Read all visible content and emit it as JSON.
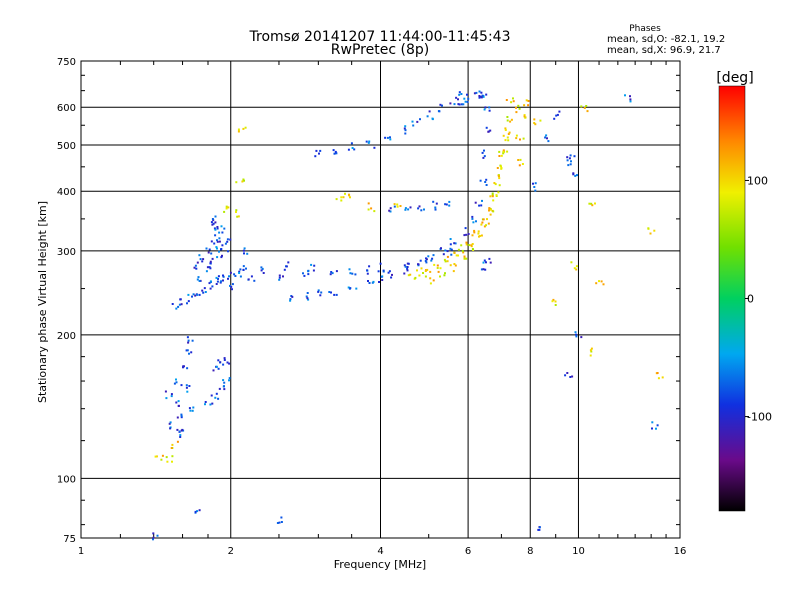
{
  "chart_data": {
    "type": "scatter",
    "title": "Tromsø 20141207 11:44:00-11:45:43",
    "subtitle": "RwPretec (8p)",
    "xlabel": "Frequency [MHz]",
    "ylabel": "Stationary phase Virtual Height [km]",
    "x_scale": "log",
    "y_scale": "log",
    "xlim": [
      1,
      16
    ],
    "ylim": [
      75,
      750
    ],
    "xticks": [
      1,
      2,
      4,
      6,
      8,
      10,
      16
    ],
    "yticks": [
      75,
      100,
      200,
      300,
      400,
      500,
      600,
      750
    ],
    "grid": true,
    "stats": {
      "title": "Phases",
      "line_o": "mean, sd,O:  -82.1, 19.2",
      "line_x": "mean, sd,X:  96.9, 21.7"
    },
    "colorbar": {
      "label": "[deg]",
      "range": [
        -180,
        180
      ],
      "ticks": [
        100,
        0,
        -100
      ],
      "colormap": "rainbow: black-purple-blue-cyan-green-yellow-red"
    },
    "series": [
      {
        "mode": "O",
        "mean_phase": -82.1,
        "points": [
          [
            1.5,
            150
          ],
          [
            1.52,
            130
          ],
          [
            1.54,
            145
          ],
          [
            1.56,
            160
          ],
          [
            1.58,
            135
          ],
          [
            1.6,
            170
          ],
          [
            1.62,
            155
          ],
          [
            1.64,
            185
          ],
          [
            1.66,
            195
          ],
          [
            1.56,
            125
          ],
          [
            1.6,
            128
          ],
          [
            1.65,
            140
          ],
          [
            1.55,
            230
          ],
          [
            1.6,
            235
          ],
          [
            1.65,
            240
          ],
          [
            1.7,
            245
          ],
          [
            1.75,
            250
          ],
          [
            1.8,
            255
          ],
          [
            1.85,
            260
          ],
          [
            1.9,
            262
          ],
          [
            1.95,
            265
          ],
          [
            2.0,
            268
          ],
          [
            1.7,
            280
          ],
          [
            1.75,
            290
          ],
          [
            1.8,
            300
          ],
          [
            1.85,
            310
          ],
          [
            1.9,
            320
          ],
          [
            1.72,
            265
          ],
          [
            1.78,
            275
          ],
          [
            1.82,
            285
          ],
          [
            1.88,
            295
          ],
          [
            1.93,
            305
          ],
          [
            1.98,
            315
          ],
          [
            2.02,
            255
          ],
          [
            2.08,
            270
          ],
          [
            2.1,
            280
          ],
          [
            2.12,
            300
          ],
          [
            1.84,
            340
          ],
          [
            1.86,
            350
          ],
          [
            1.88,
            330
          ],
          [
            1.9,
            335
          ],
          [
            1.85,
            170
          ],
          [
            1.9,
            175
          ],
          [
            1.95,
            178
          ],
          [
            1.8,
            145
          ],
          [
            1.85,
            150
          ],
          [
            1.9,
            155
          ],
          [
            1.95,
            160
          ],
          [
            2.6,
            240
          ],
          [
            2.8,
            242
          ],
          [
            3.0,
            245
          ],
          [
            3.2,
            248
          ],
          [
            3.5,
            252
          ],
          [
            3.8,
            258
          ],
          [
            4.0,
            262
          ],
          [
            4.2,
            268
          ],
          [
            4.5,
            275
          ],
          [
            4.8,
            285
          ],
          [
            5.0,
            290
          ],
          [
            5.3,
            300
          ],
          [
            5.6,
            315
          ],
          [
            5.9,
            330
          ],
          [
            6.1,
            350
          ],
          [
            6.3,
            380
          ],
          [
            6.4,
            420
          ],
          [
            6.45,
            480
          ],
          [
            6.5,
            540
          ],
          [
            6.5,
            600
          ],
          [
            6.4,
            630
          ],
          [
            2.2,
            262
          ],
          [
            2.5,
            265
          ],
          [
            2.8,
            268
          ],
          [
            3.2,
            270
          ],
          [
            3.5,
            272
          ],
          [
            3.8,
            275
          ],
          [
            4.0,
            278
          ],
          [
            4.5,
            282
          ],
          [
            5.0,
            290
          ],
          [
            5.5,
            300
          ],
          [
            2.3,
            275
          ],
          [
            2.6,
            280
          ],
          [
            2.9,
            278
          ],
          [
            3.0,
            480
          ],
          [
            3.2,
            490
          ],
          [
            3.5,
            500
          ],
          [
            3.8,
            505
          ],
          [
            4.1,
            520
          ],
          [
            4.4,
            540
          ],
          [
            4.7,
            560
          ],
          [
            5.0,
            580
          ],
          [
            5.3,
            600
          ],
          [
            5.6,
            620
          ],
          [
            5.8,
            640
          ],
          [
            4.2,
            370
          ],
          [
            4.5,
            370
          ],
          [
            4.8,
            372
          ],
          [
            5.1,
            375
          ],
          [
            5.4,
            380
          ],
          [
            5.8,
            620
          ],
          [
            6.0,
            630
          ],
          [
            6.2,
            640
          ],
          [
            6.3,
            645
          ],
          [
            6.45,
            280
          ],
          [
            6.55,
            290
          ],
          [
            8.2,
            410
          ],
          [
            8.6,
            520
          ],
          [
            9.0,
            580
          ],
          [
            9.5,
            460
          ],
          [
            9.6,
            470
          ],
          [
            12.5,
            630
          ],
          [
            10.0,
            200
          ],
          [
            9.5,
            165
          ],
          [
            8.2,
            78
          ],
          [
            1.7,
            85
          ],
          [
            2.5,
            82
          ],
          [
            1.4,
            76
          ],
          [
            9.8,
            430
          ],
          [
            14.2,
            130
          ]
        ]
      },
      {
        "mode": "X",
        "mean_phase": 96.9,
        "points": [
          [
            4.6,
            268
          ],
          [
            4.8,
            272
          ],
          [
            5.0,
            276
          ],
          [
            5.2,
            282
          ],
          [
            5.4,
            288
          ],
          [
            5.6,
            295
          ],
          [
            5.8,
            305
          ],
          [
            6.0,
            315
          ],
          [
            6.2,
            330
          ],
          [
            6.4,
            345
          ],
          [
            6.6,
            365
          ],
          [
            6.7,
            390
          ],
          [
            6.8,
            420
          ],
          [
            6.9,
            450
          ],
          [
            7.0,
            480
          ],
          [
            7.1,
            520
          ],
          [
            7.2,
            570
          ],
          [
            7.25,
            620
          ],
          [
            5.0,
            262
          ],
          [
            5.3,
            268
          ],
          [
            5.6,
            278
          ],
          [
            5.9,
            290
          ],
          [
            6.1,
            305
          ],
          [
            6.3,
            325
          ],
          [
            6.5,
            345
          ],
          [
            6.65,
            370
          ],
          [
            6.8,
            400
          ],
          [
            6.95,
            440
          ],
          [
            7.1,
            490
          ],
          [
            7.2,
            540
          ],
          [
            7.6,
            520
          ],
          [
            7.7,
            580
          ],
          [
            7.8,
            620
          ],
          [
            7.5,
            600
          ],
          [
            1.95,
            370
          ],
          [
            2.05,
            360
          ],
          [
            2.1,
            540
          ],
          [
            2.08,
            420
          ],
          [
            3.3,
            390
          ],
          [
            3.4,
            390
          ],
          [
            3.8,
            372
          ],
          [
            4.3,
            372
          ],
          [
            9.8,
            280
          ],
          [
            10.6,
            380
          ],
          [
            10.2,
            600
          ],
          [
            8.2,
            560
          ],
          [
            7.6,
            460
          ],
          [
            14.0,
            330
          ],
          [
            14.5,
            165
          ],
          [
            10.5,
            185
          ],
          [
            8.9,
            235
          ],
          [
            1.5,
            110
          ],
          [
            1.53,
            118
          ],
          [
            1.43,
            110
          ],
          [
            11.0,
            260
          ]
        ]
      }
    ]
  }
}
